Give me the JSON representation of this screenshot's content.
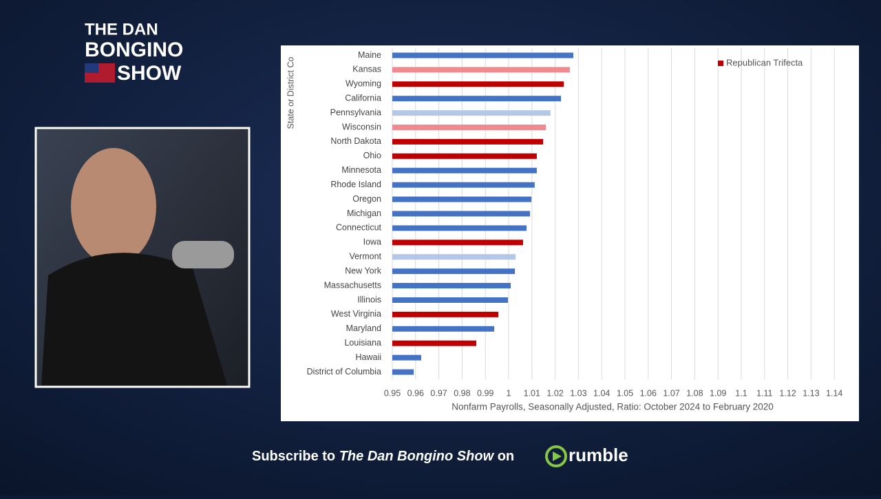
{
  "branding": {
    "logo": [
      "THE DAN",
      "BONGINO",
      "SHOW"
    ],
    "footer": [
      "Subscribe to",
      "The Dan Bongino Show",
      "on",
      "rumble"
    ]
  },
  "chart_data": {
    "type": "hbar",
    "ylabel": "State or District Co",
    "xlabel": "Nonfarm Payrolls, Seasonally Adjusted, Ratio: October 2024 to February 2020",
    "categories": [
      "Maine",
      "Kansas",
      "Wyoming",
      "California",
      "Pennsylvania",
      "Wisconsin",
      "North Dakota",
      "Ohio",
      "Minnesota",
      "Rhode Island",
      "Oregon",
      "Michigan",
      "Connecticut",
      "Iowa",
      "Vermont",
      "New York",
      "Massachusetts",
      "Illinois",
      "West Virginia",
      "Maryland",
      "Louisiana",
      "Hawaii",
      "District of Columbia"
    ],
    "values": [
      1.0278,
      1.0263,
      1.0237,
      1.0225,
      1.018,
      1.016,
      1.0148,
      1.0121,
      1.0121,
      1.0112,
      1.0098,
      1.0092,
      1.0077,
      1.0062,
      1.003,
      1.0027,
      1.0009,
      0.9997,
      0.9956,
      0.9938,
      0.9861,
      0.9624,
      0.9592
    ],
    "colors": [
      "#4472c4",
      "#f08a8f",
      "#c00000",
      "#4472c4",
      "#b4c7e7",
      "#f08a8f",
      "#c00000",
      "#c00000",
      "#4472c4",
      "#4472c4",
      "#4472c4",
      "#4472c4",
      "#4472c4",
      "#c00000",
      "#b4c7e7",
      "#4472c4",
      "#4472c4",
      "#4472c4",
      "#c00000",
      "#4472c4",
      "#c00000",
      "#4472c4",
      "#4472c4"
    ],
    "legend": [
      {
        "name": "Republican Trifecta",
        "color": "#c00000"
      }
    ],
    "xlim": [
      0.95,
      1.145
    ],
    "xticks": [
      0.95,
      0.96,
      0.97,
      0.98,
      0.99,
      1,
      1.01,
      1.02,
      1.03,
      1.04,
      1.05,
      1.06,
      1.07,
      1.08,
      1.09,
      1.1,
      1.11,
      1.12,
      1.13,
      1.14
    ],
    "grid": true
  }
}
